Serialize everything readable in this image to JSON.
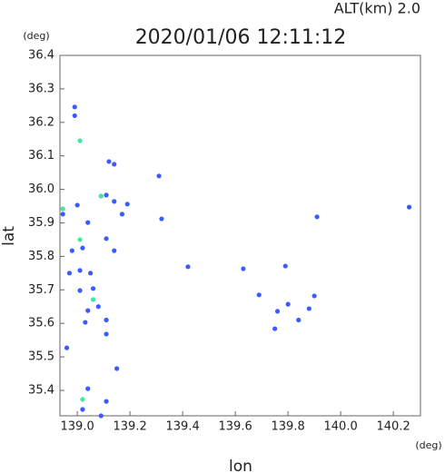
{
  "chart_data": {
    "type": "scatter",
    "title": "2020/01/06 12:11:12",
    "annotation": "ALT(km)  2.0",
    "y_unit": "(deg)",
    "x_unit": "(deg)",
    "x_label": "lon",
    "y_label": "lat",
    "xlim": [
      138.934,
      140.303
    ],
    "ylim": [
      35.324,
      36.4
    ],
    "xticks": [
      {
        "value": 139,
        "label": "139.0"
      },
      139.2,
      139.4,
      139.6,
      139.8,
      {
        "value": 140,
        "label": "140.0"
      },
      140.2
    ],
    "yticks": [
      35.4,
      35.5,
      35.6,
      35.7,
      35.8,
      35.9,
      {
        "value": 36,
        "label": "36.0"
      },
      36.1,
      36.2,
      36.3,
      36.4
    ],
    "series": [
      {
        "color": "#3a5cff",
        "x": [
          138.99,
          138.99,
          139.12,
          139.14,
          139.31,
          138.945,
          139.0,
          139.09,
          139.11,
          139.14,
          139.17,
          139.19,
          139.32,
          139.04,
          139.11,
          138.98,
          139.02,
          139.14,
          139.01,
          138.97,
          139.05,
          139.42,
          139.63,
          139.79,
          139.01,
          139.06,
          139.08,
          139.04,
          139.11,
          139.11,
          139.03,
          139.69,
          139.76,
          139.8,
          139.9,
          139.88,
          139.84,
          139.75,
          139.91,
          140.26,
          138.96,
          139.15,
          139.04,
          139.11,
          139.02,
          139.09
        ],
        "y": [
          36.246,
          36.22,
          36.083,
          36.075,
          36.04,
          35.926,
          35.953,
          35.98,
          35.983,
          35.964,
          35.926,
          35.956,
          35.912,
          35.901,
          35.853,
          35.817,
          35.825,
          35.817,
          35.758,
          35.75,
          35.75,
          35.769,
          35.763,
          35.771,
          35.698,
          35.704,
          35.65,
          35.638,
          35.61,
          35.568,
          35.603,
          35.685,
          35.636,
          35.657,
          35.682,
          35.644,
          35.61,
          35.584,
          35.918,
          35.947,
          35.527,
          35.465,
          35.405,
          35.367,
          35.343,
          35.324
        ]
      },
      {
        "color": "#44e89a",
        "x": [
          139.01,
          138.945,
          139.01,
          139.06,
          139.02,
          139.09
        ],
        "y": [
          36.145,
          35.942,
          35.85,
          35.671,
          35.373,
          35.98
        ]
      }
    ]
  }
}
